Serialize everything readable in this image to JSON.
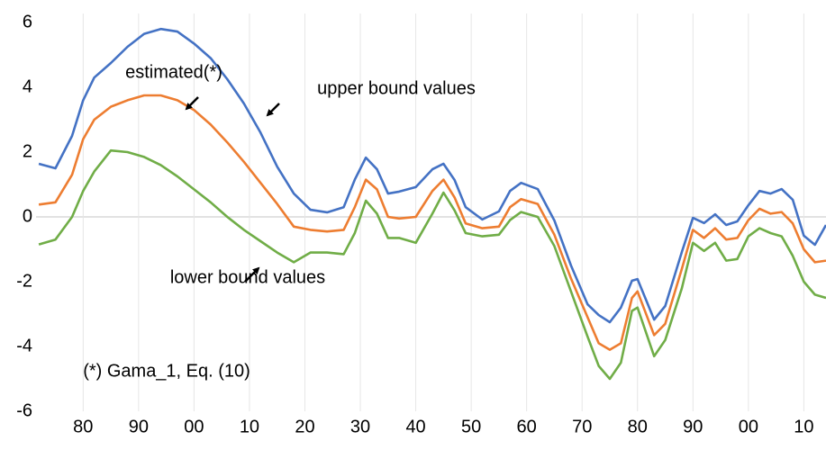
{
  "chart_data": {
    "type": "line",
    "note": "(*) Gama_1, Eq. (10)",
    "x": [
      1872,
      1875,
      1878,
      1880,
      1882,
      1885,
      1888,
      1891,
      1894,
      1897,
      1900,
      1903,
      1906,
      1909,
      1912,
      1915,
      1918,
      1921,
      1924,
      1927,
      1929,
      1931,
      1933,
      1935,
      1937,
      1940,
      1943,
      1945,
      1947,
      1949,
      1952,
      1955,
      1957,
      1959,
      1962,
      1965,
      1968,
      1971,
      1973,
      1975,
      1977,
      1979,
      1980,
      1983,
      1985,
      1988,
      1990,
      1992,
      1994,
      1996,
      1998,
      2000,
      2002,
      2004,
      2006,
      2008,
      2010,
      2012,
      2014
    ],
    "series": [
      {
        "name": "upper bound values",
        "color": "#4472c4",
        "values": [
          1.64,
          1.5,
          2.5,
          3.6,
          4.3,
          4.75,
          5.25,
          5.65,
          5.8,
          5.72,
          5.35,
          4.9,
          4.25,
          3.5,
          2.6,
          1.55,
          0.72,
          0.22,
          0.14,
          0.3,
          1.15,
          1.83,
          1.47,
          0.72,
          0.78,
          0.92,
          1.47,
          1.64,
          1.14,
          0.3,
          -0.08,
          0.17,
          0.8,
          1.05,
          0.86,
          -0.11,
          -1.5,
          -2.7,
          -3.03,
          -3.25,
          -2.8,
          -1.97,
          -1.92,
          -3.17,
          -2.75,
          -1.08,
          -0.03,
          -0.19,
          0.08,
          -0.25,
          -0.14,
          0.36,
          0.8,
          0.72,
          0.86,
          0.53,
          -0.58,
          -0.86,
          -0.25
        ]
      },
      {
        "name": "estimated(*)",
        "color": "#ed7d31",
        "values": [
          0.38,
          0.45,
          1.3,
          2.4,
          3.0,
          3.4,
          3.6,
          3.75,
          3.75,
          3.6,
          3.3,
          2.85,
          2.3,
          1.7,
          1.05,
          0.4,
          -0.3,
          -0.4,
          -0.45,
          -0.4,
          0.3,
          1.15,
          0.85,
          0.0,
          -0.05,
          0.0,
          0.8,
          1.15,
          0.6,
          -0.2,
          -0.35,
          -0.3,
          0.3,
          0.55,
          0.4,
          -0.55,
          -1.9,
          -3.1,
          -3.9,
          -4.1,
          -3.9,
          -2.5,
          -2.3,
          -3.65,
          -3.3,
          -1.6,
          -0.4,
          -0.65,
          -0.35,
          -0.7,
          -0.65,
          -0.1,
          0.25,
          0.1,
          0.15,
          -0.2,
          -1.0,
          -1.4,
          -1.35
        ]
      },
      {
        "name": "lower bound values",
        "color": "#70ad47",
        "values": [
          -0.85,
          -0.7,
          0.0,
          0.8,
          1.4,
          2.05,
          2.0,
          1.85,
          1.6,
          1.25,
          0.85,
          0.45,
          0.0,
          -0.4,
          -0.75,
          -1.1,
          -1.4,
          -1.1,
          -1.1,
          -1.15,
          -0.5,
          0.5,
          0.1,
          -0.65,
          -0.65,
          -0.8,
          0.1,
          0.75,
          0.2,
          -0.5,
          -0.6,
          -0.55,
          -0.1,
          0.15,
          0.0,
          -0.9,
          -2.3,
          -3.7,
          -4.6,
          -5.0,
          -4.5,
          -2.9,
          -2.8,
          -4.3,
          -3.8,
          -2.2,
          -0.8,
          -1.05,
          -0.8,
          -1.35,
          -1.3,
          -0.6,
          -0.35,
          -0.5,
          -0.6,
          -1.2,
          -2.0,
          -2.4,
          -2.5
        ]
      }
    ],
    "xlim": [
      1871.5,
      2014
    ],
    "xticks": [
      {
        "value": 1880,
        "label": "80"
      },
      {
        "value": 1890,
        "label": "90"
      },
      {
        "value": 1900,
        "label": "00"
      },
      {
        "value": 1910,
        "label": "10"
      },
      {
        "value": 1920,
        "label": "20"
      },
      {
        "value": 1930,
        "label": "30"
      },
      {
        "value": 1940,
        "label": "40"
      },
      {
        "value": 1950,
        "label": "50"
      },
      {
        "value": 1960,
        "label": "60"
      },
      {
        "value": 1970,
        "label": "70"
      },
      {
        "value": 1980,
        "label": "80"
      },
      {
        "value": 1990,
        "label": "90"
      },
      {
        "value": 2000,
        "label": "00"
      },
      {
        "value": 2010,
        "label": "10"
      }
    ],
    "ylim": [
      -6,
      6
    ],
    "yticks": [
      -6,
      -4,
      -2,
      0,
      2,
      4,
      6
    ],
    "grid": true
  }
}
